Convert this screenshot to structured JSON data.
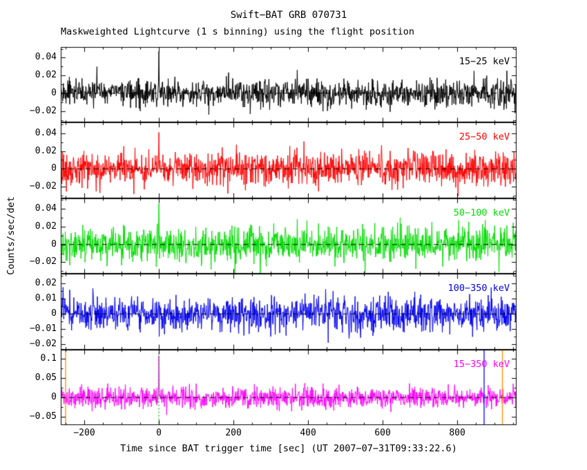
{
  "chart_data": {
    "type": "line",
    "title": "Swift−BAT GRB 070731",
    "subtitle": "Maskweighted Lightcurve (1 s binning) using the flight position",
    "xlabel": "Time since BAT trigger time [sec] (UT 2007−07−31T09:33:22.6)",
    "ylabel": "Counts/sec/det",
    "binning": "1 s",
    "zero_line_style": "dashed",
    "x": {
      "lim": [
        -263,
        959
      ],
      "ticks": [
        -200,
        0,
        200,
        400,
        600,
        800
      ],
      "ticklabels": [
        "−200",
        "0",
        "200",
        "400",
        "600",
        "800"
      ]
    },
    "panels": [
      {
        "band": "15−25 keV",
        "color": "#000000",
        "ylim": [
          -0.033,
          0.052
        ],
        "yticks": [
          0.04,
          0.02,
          0,
          -0.02
        ],
        "yticklabels": [
          "0.04",
          "0.02",
          "0",
          "−0.02"
        ],
        "baseline": 0,
        "noise_sigma": 0.0078,
        "burst_spike": {
          "t": 0,
          "peak": 0.047
        }
      },
      {
        "band": "25−50 keV",
        "color": "#ff0000",
        "ylim": [
          -0.033,
          0.052
        ],
        "yticks": [
          0.04,
          0.02,
          0,
          -0.02
        ],
        "yticklabels": [
          "0.04",
          "0.02",
          "0",
          "−0.02"
        ],
        "baseline": 0,
        "noise_sigma": 0.0095,
        "burst_spike": {
          "t": 0,
          "peak": 0.041
        }
      },
      {
        "band": "50−100 keV",
        "color": "#00dd00",
        "ylim": [
          -0.033,
          0.052
        ],
        "yticks": [
          0.04,
          0.02,
          0,
          -0.02
        ],
        "yticklabels": [
          "0.04",
          "0.02",
          "0",
          "−0.02"
        ],
        "baseline": 0,
        "noise_sigma": 0.0095,
        "burst_spike": {
          "t": 0,
          "peak": 0.046
        }
      },
      {
        "band": "100−350 keV",
        "color": "#0000ee",
        "ylim": [
          -0.0235,
          0.0265
        ],
        "yticks": [
          0.02,
          0.01,
          0,
          -0.01,
          -0.02
        ],
        "yticklabels": [
          "0.02",
          "0.01",
          "0",
          "−0.01",
          "−0.02"
        ],
        "baseline": 0,
        "noise_sigma": 0.0058,
        "burst_spike": null
      },
      {
        "band": "15−350 keV",
        "color": "#ff00ff",
        "ylim": [
          -0.071,
          0.124
        ],
        "yticks": [
          0.1,
          0.05,
          0,
          -0.05
        ],
        "yticklabels": [
          "0.1",
          "0.05",
          "0",
          "−0.05"
        ],
        "baseline": 0,
        "noise_sigma": 0.0135,
        "burst_spike": {
          "t": 0,
          "peak": 0.108
        },
        "vlines": [
          {
            "t": -250,
            "color": "#ff8800",
            "style": "solid"
          },
          {
            "t": 0,
            "color": "#00bb00",
            "style": "dotted"
          },
          {
            "t": 872,
            "color": "#0000ff",
            "style": "solid"
          },
          {
            "t": 921,
            "color": "#ff8800",
            "style": "solid"
          }
        ]
      }
    ]
  }
}
